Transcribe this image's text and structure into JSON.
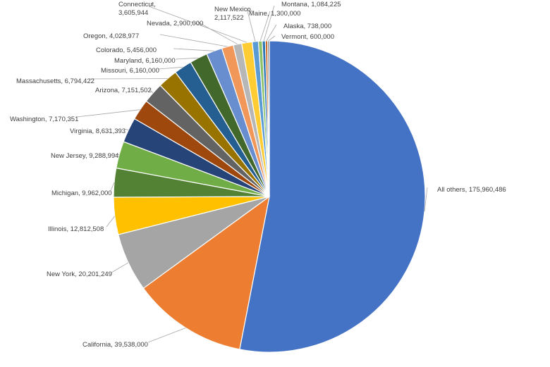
{
  "chart_data": {
    "type": "pie",
    "title": "",
    "start_angle_deg": 0,
    "direction": "clockwise",
    "slices": [
      {
        "label": "All others",
        "display_value": "175,960,486",
        "value": 175960486,
        "color": "#4472C4"
      },
      {
        "label": "California",
        "display_value": "39,538,000",
        "value": 39538000,
        "color": "#ED7D31"
      },
      {
        "label": "New York",
        "display_value": "20,201,249",
        "value": 20201249,
        "color": "#A5A5A5"
      },
      {
        "label": "Illinois",
        "display_value": "12,812,508",
        "value": 12812508,
        "color": "#FFC000"
      },
      {
        "label": "Michigan",
        "display_value": "9,962,000",
        "value": 9962000,
        "color": "#548235"
      },
      {
        "label": "New Jersey",
        "display_value": "9,288,994",
        "value": 9288994,
        "color": "#70AD47"
      },
      {
        "label": "Virginia",
        "display_value": "8,631,393",
        "value": 8631393,
        "color": "#264478"
      },
      {
        "label": "Washington",
        "display_value": "7,170,351",
        "value": 7170351,
        "color": "#9E480E"
      },
      {
        "label": "Arizona",
        "display_value": "7,151,502",
        "value": 7151502,
        "color": "#636363"
      },
      {
        "label": "Massachusetts",
        "display_value": "6,794,422",
        "value": 6794422,
        "color": "#997300"
      },
      {
        "label": "Missouri",
        "display_value": "6,160,000",
        "value": 6160000,
        "color": "#255E91"
      },
      {
        "label": "Maryland",
        "display_value": "6,160,000",
        "value": 6160000,
        "color": "#43682B"
      },
      {
        "label": "Colorado",
        "display_value": "5,456,000",
        "value": 5456000,
        "color": "#698ED0"
      },
      {
        "label": "Oregon",
        "display_value": "4,028,977",
        "value": 4028977,
        "color": "#F1975A"
      },
      {
        "label": "Nevada",
        "display_value": "2,900,000",
        "value": 2900000,
        "color": "#B7B7B7"
      },
      {
        "label": "Connecticut",
        "display_value": "3,605,944",
        "value": 3605944,
        "color": "#FFCD33"
      },
      {
        "label": "New Mexico",
        "display_value": "2,117,522",
        "value": 2117522,
        "color": "#5B9BD5"
      },
      {
        "label": "Maine",
        "display_value": "1,300,000",
        "value": 1300000,
        "color": "#8CC168"
      },
      {
        "label": "Montana",
        "display_value": "1,084,225",
        "value": 1084225,
        "color": "#2E75B6"
      },
      {
        "label": "Alaska",
        "display_value": "738,000",
        "value": 738000,
        "color": "#C55A11"
      },
      {
        "label": "Vermont",
        "display_value": "600,000",
        "value": 600000,
        "color": "#7F7F7F"
      }
    ]
  }
}
